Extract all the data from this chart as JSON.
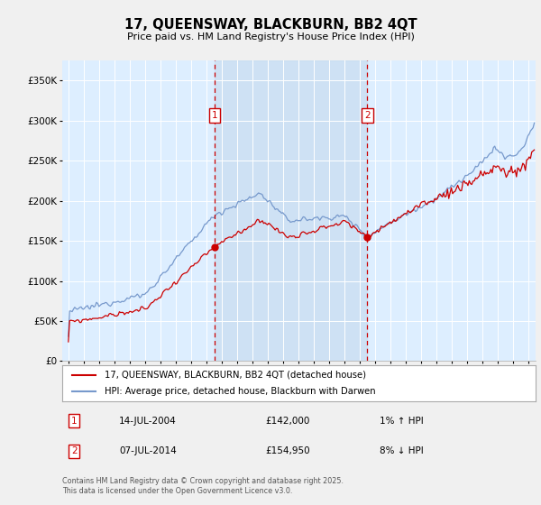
{
  "title": "17, QUEENSWAY, BLACKBURN, BB2 4QT",
  "subtitle": "Price paid vs. HM Land Registry's House Price Index (HPI)",
  "legend_line1": "17, QUEENSWAY, BLACKBURN, BB2 4QT (detached house)",
  "legend_line2": "HPI: Average price, detached house, Blackburn with Darwen",
  "annotation1": {
    "label": "1",
    "date": "14-JUL-2004",
    "price": "£142,000",
    "pct": "1% ↑ HPI",
    "x_year": 2004.54
  },
  "annotation2": {
    "label": "2",
    "date": "07-JUL-2014",
    "price": "£154,950",
    "pct": "8% ↓ HPI",
    "x_year": 2014.52
  },
  "footnote": "Contains HM Land Registry data © Crown copyright and database right 2025.\nThis data is licensed under the Open Government Licence v3.0.",
  "hpi_color": "#7799cc",
  "price_color": "#cc0000",
  "bg_color": "#ddeeff",
  "highlight_color": "#c8dcf0",
  "grid_color": "#ffffff",
  "fig_bg": "#f0f0f0",
  "ylim": [
    0,
    375000
  ],
  "xlim_start": 1994.6,
  "xlim_end": 2025.5,
  "yticks": [
    0,
    50000,
    100000,
    150000,
    200000,
    250000,
    300000,
    350000
  ]
}
